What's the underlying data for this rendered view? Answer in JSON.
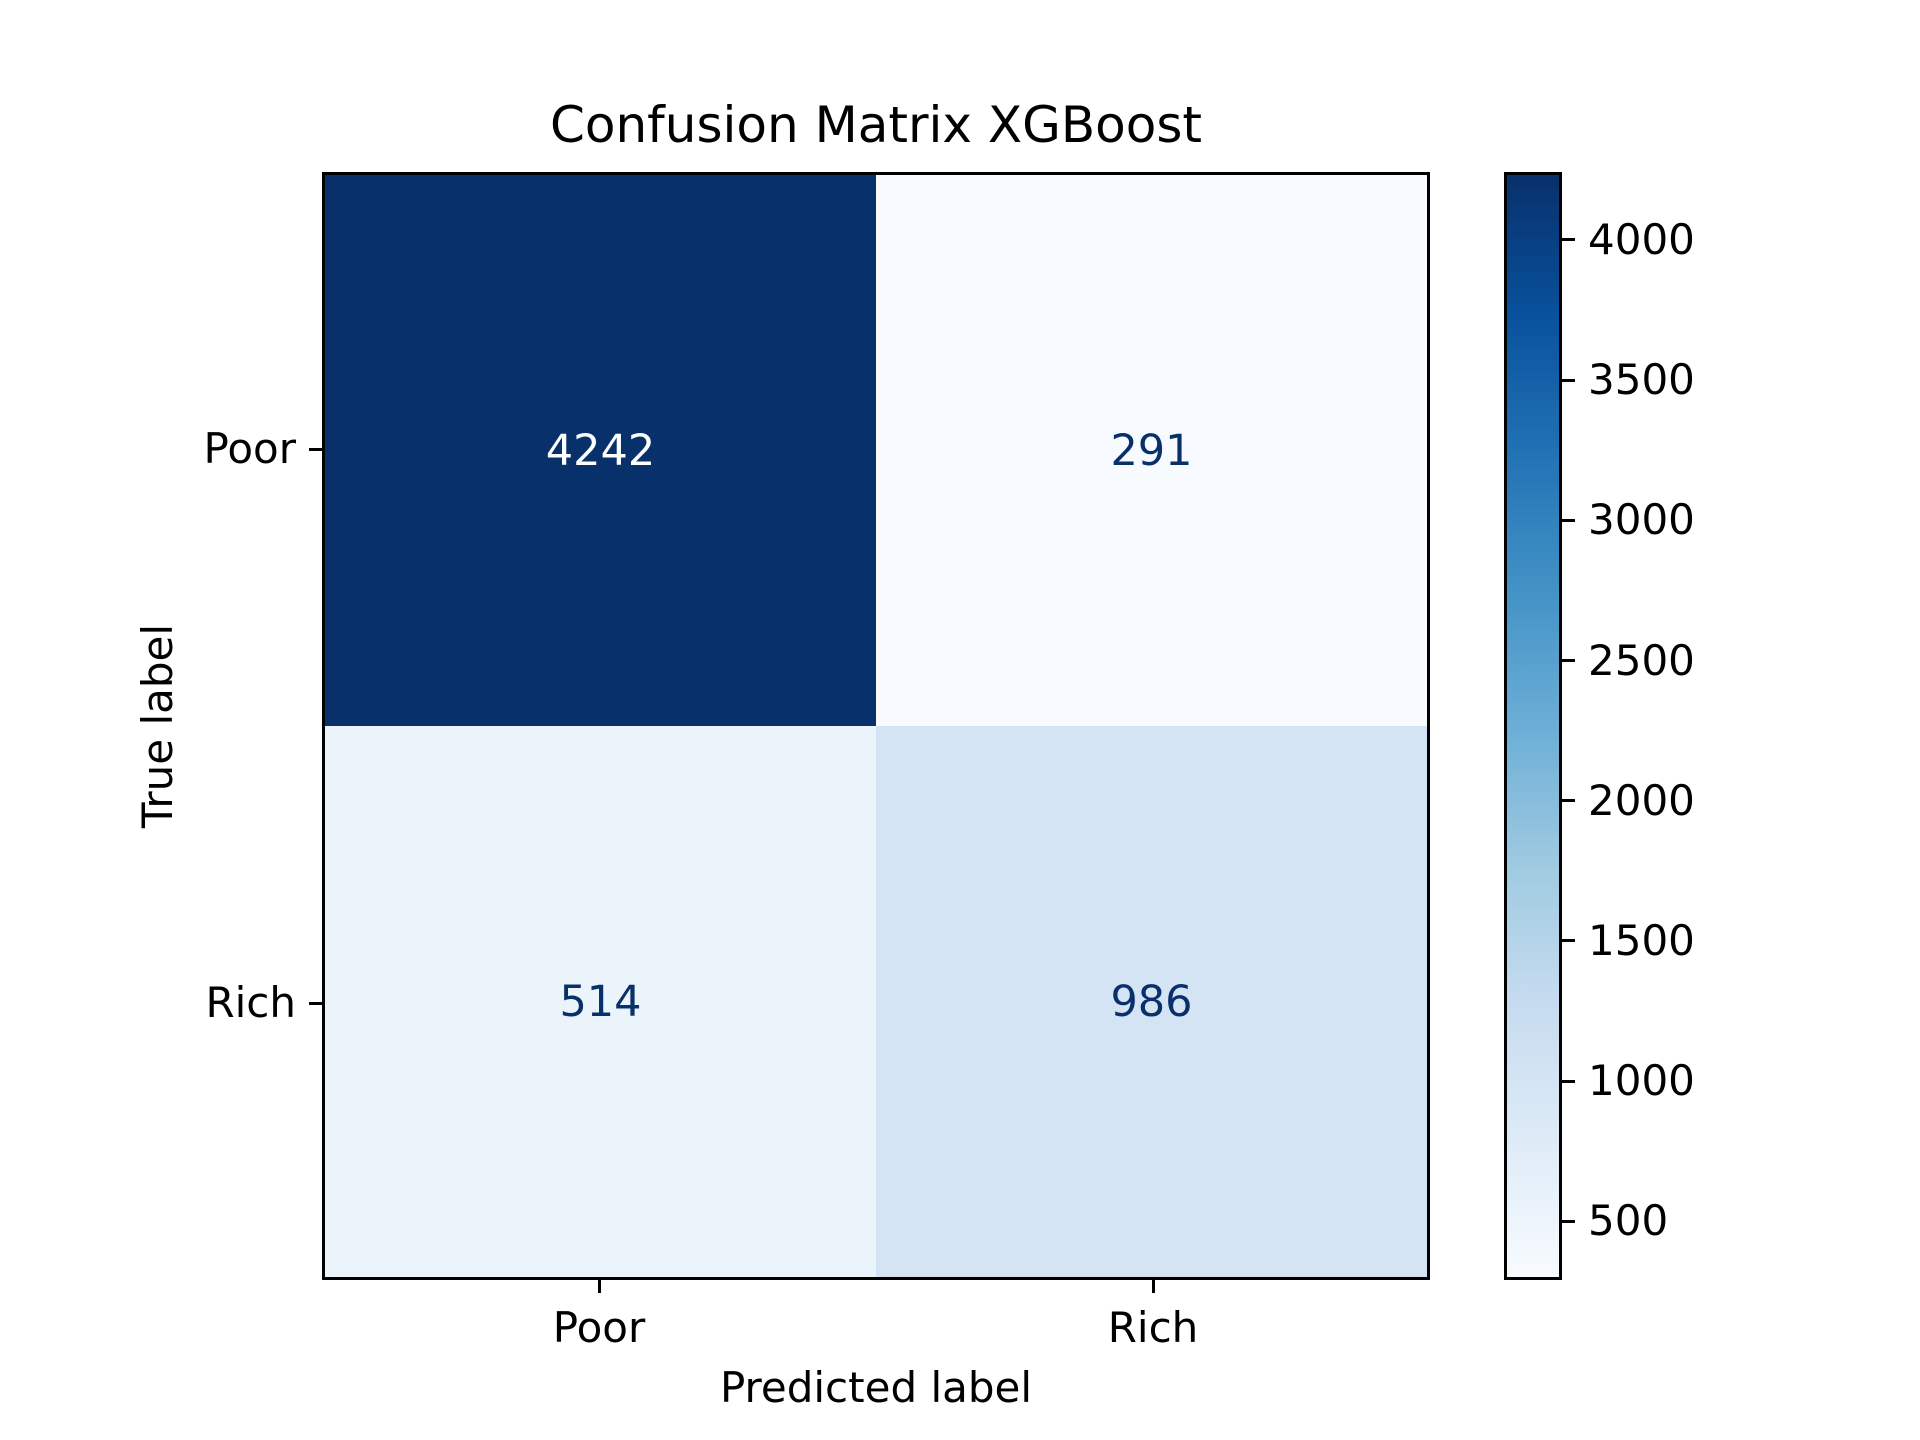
{
  "chart_data": {
    "type": "heatmap",
    "title": "Confusion Matrix XGBoost",
    "xlabel": "Predicted label",
    "ylabel": "True label",
    "x_categories": [
      "Poor",
      "Rich"
    ],
    "y_categories": [
      "Poor",
      "Rich"
    ],
    "matrix": [
      [
        4242,
        291
      ],
      [
        514,
        986
      ]
    ],
    "colormap": "Blues",
    "vmin": 291,
    "vmax": 4242,
    "colorbar_ticks": [
      500,
      1000,
      1500,
      2000,
      2500,
      3000,
      3500,
      4000
    ],
    "colorbar_position": "right",
    "grid": false,
    "colormap_stops": [
      "#f7fbff",
      "#deebf7",
      "#c6dbef",
      "#9ecae1",
      "#6baed6",
      "#4292c6",
      "#2171b5",
      "#08519c",
      "#08306b"
    ],
    "cell_colors": [
      [
        "#08306b",
        "#f7fbff"
      ],
      [
        "#ecf4fb",
        "#d4e4f4"
      ]
    ],
    "cell_text_colors": [
      [
        "#ffffff",
        "#08306b"
      ],
      [
        "#08306b",
        "#08306b"
      ]
    ],
    "axis_color": "#000000",
    "background_color": "#ffffff"
  }
}
